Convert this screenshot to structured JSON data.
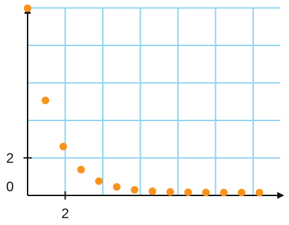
{
  "colors": {
    "grid": "#8fd3f0",
    "axis": "#111111",
    "points": "#f7931e",
    "background": "#ffffff"
  },
  "chart_data": {
    "type": "scatter",
    "title": "",
    "xlabel": "",
    "ylabel": "",
    "x_tick_labels": [
      "2"
    ],
    "y_tick_labels": [
      "0",
      "2"
    ],
    "xlim": [
      0,
      14
    ],
    "ylim": [
      -0.3,
      20
    ],
    "grid": true,
    "series": [
      {
        "x": [
          0,
          1,
          2,
          3,
          4,
          5,
          6,
          7,
          8,
          9,
          10,
          11,
          12,
          13
        ],
        "y": [
          20,
          10,
          5,
          2.5,
          1.25,
          0.625,
          0.31,
          0.16,
          0.08,
          0.04,
          0.02,
          0.01,
          0.005,
          0.002
        ]
      }
    ]
  }
}
